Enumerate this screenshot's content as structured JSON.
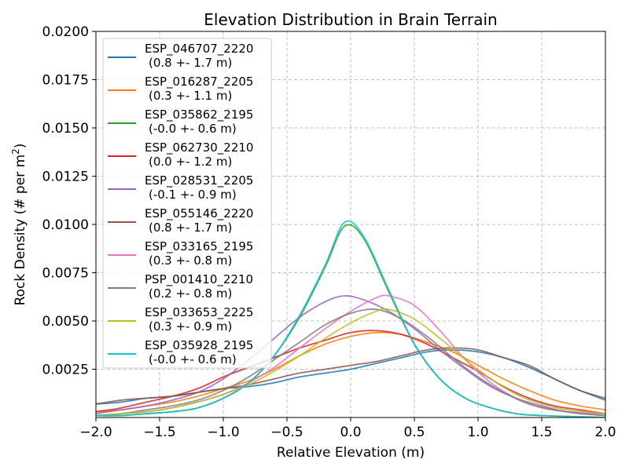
{
  "chart_data": {
    "type": "line",
    "title": "Elevation Distribution in Brain Terrain",
    "xlabel": "Relative Elevation (m)",
    "ylabel_main": "Rock Density (# per m",
    "ylabel_sup": "2",
    "ylabel_end": ")",
    "xlim": [
      -2.0,
      2.0
    ],
    "ylim": [
      0,
      0.02
    ],
    "grid": true,
    "legend_position": "upper-left",
    "x_ticks": [
      {
        "value": -2.0,
        "label": "−2.0"
      },
      {
        "value": -1.5,
        "label": "−1.5"
      },
      {
        "value": -1.0,
        "label": "−1.0"
      },
      {
        "value": -0.5,
        "label": "−0.5"
      },
      {
        "value": 0.0,
        "label": "0.0"
      },
      {
        "value": 0.5,
        "label": "0.5"
      },
      {
        "value": 1.0,
        "label": "1.0"
      },
      {
        "value": 1.5,
        "label": "1.5"
      },
      {
        "value": 2.0,
        "label": "2.0"
      }
    ],
    "y_ticks": [
      {
        "value": 0.0025,
        "label": "0.0025"
      },
      {
        "value": 0.005,
        "label": "0.0050"
      },
      {
        "value": 0.0075,
        "label": "0.0075"
      },
      {
        "value": 0.01,
        "label": "0.0100"
      },
      {
        "value": 0.0125,
        "label": "0.0125"
      },
      {
        "value": 0.015,
        "label": "0.0150"
      },
      {
        "value": 0.0175,
        "label": "0.0175"
      },
      {
        "value": 0.02,
        "label": "0.0200"
      }
    ],
    "series": [
      {
        "name": "ESP_046707_2220",
        "stats": "(0.8 +- 1.7 m)",
        "color": "#1f77b4",
        "points": [
          [
            -2.0,
            0.0007
          ],
          [
            -1.8,
            0.0008
          ],
          [
            -1.6,
            0.001
          ],
          [
            -1.4,
            0.0011
          ],
          [
            -1.2,
            0.0013
          ],
          [
            -1.0,
            0.0015
          ],
          [
            -0.8,
            0.0016
          ],
          [
            -0.6,
            0.0018
          ],
          [
            -0.4,
            0.0021
          ],
          [
            -0.2,
            0.0023
          ],
          [
            0.0,
            0.0025
          ],
          [
            0.2,
            0.0028
          ],
          [
            0.4,
            0.0031
          ],
          [
            0.6,
            0.0034
          ],
          [
            0.8,
            0.0035
          ],
          [
            1.0,
            0.0034
          ],
          [
            1.2,
            0.0031
          ],
          [
            1.4,
            0.0026
          ],
          [
            1.6,
            0.002
          ],
          [
            1.8,
            0.0014
          ],
          [
            2.0,
            0.0009
          ]
        ]
      },
      {
        "name": "ESP_016287_2205",
        "stats": "(0.3 +- 1.1 m)",
        "color": "#ff7f0e",
        "points": [
          [
            -2.0,
            0.0003
          ],
          [
            -1.8,
            0.0004
          ],
          [
            -1.6,
            0.0006
          ],
          [
            -1.4,
            0.0008
          ],
          [
            -1.2,
            0.0011
          ],
          [
            -1.0,
            0.0015
          ],
          [
            -0.8,
            0.0019
          ],
          [
            -0.6,
            0.0025
          ],
          [
            -0.4,
            0.0032
          ],
          [
            -0.2,
            0.0038
          ],
          [
            0.0,
            0.0042
          ],
          [
            0.2,
            0.0044
          ],
          [
            0.4,
            0.0043
          ],
          [
            0.6,
            0.0039
          ],
          [
            0.8,
            0.0034
          ],
          [
            1.0,
            0.0027
          ],
          [
            1.2,
            0.002
          ],
          [
            1.4,
            0.0014
          ],
          [
            1.6,
            0.0009
          ],
          [
            1.8,
            0.0006
          ],
          [
            2.0,
            0.0004
          ]
        ]
      },
      {
        "name": "ESP_035862_2195",
        "stats": "(-0.0 +- 0.6 m)",
        "color": "#2ca02c",
        "points": [
          [
            -2.0,
            0.0001
          ],
          [
            -1.8,
            0.0001
          ],
          [
            -1.6,
            0.0002
          ],
          [
            -1.4,
            0.0003
          ],
          [
            -1.2,
            0.0005
          ],
          [
            -1.0,
            0.001
          ],
          [
            -0.8,
            0.0018
          ],
          [
            -0.6,
            0.0032
          ],
          [
            -0.4,
            0.0052
          ],
          [
            -0.2,
            0.0078
          ],
          [
            -0.05,
            0.0099
          ],
          [
            0.1,
            0.0093
          ],
          [
            0.3,
            0.0065
          ],
          [
            0.5,
            0.0038
          ],
          [
            0.7,
            0.002
          ],
          [
            0.9,
            0.001
          ],
          [
            1.1,
            0.0005
          ],
          [
            1.3,
            0.0002
          ],
          [
            1.5,
            0.0001
          ],
          [
            2.0,
            0.0
          ]
        ]
      },
      {
        "name": "ESP_062730_2210",
        "stats": "(0.0 +- 1.2 m)",
        "color": "#d62728",
        "points": [
          [
            -2.0,
            0.0003
          ],
          [
            -1.8,
            0.0005
          ],
          [
            -1.6,
            0.0008
          ],
          [
            -1.4,
            0.0011
          ],
          [
            -1.2,
            0.0015
          ],
          [
            -1.0,
            0.0021
          ],
          [
            -0.8,
            0.0026
          ],
          [
            -0.6,
            0.0031
          ],
          [
            -0.4,
            0.0036
          ],
          [
            -0.2,
            0.004
          ],
          [
            0.0,
            0.0044
          ],
          [
            0.2,
            0.0045
          ],
          [
            0.4,
            0.0043
          ],
          [
            0.6,
            0.0038
          ],
          [
            0.8,
            0.0031
          ],
          [
            1.0,
            0.0024
          ],
          [
            1.2,
            0.0016
          ],
          [
            1.4,
            0.001
          ],
          [
            1.6,
            0.0006
          ],
          [
            1.8,
            0.0004
          ],
          [
            2.0,
            0.0002
          ]
        ]
      },
      {
        "name": "ESP_028531_2205",
        "stats": "(-0.1 +- 0.9 m)",
        "color": "#9467bd",
        "points": [
          [
            -2.0,
            0.0002
          ],
          [
            -1.8,
            0.0004
          ],
          [
            -1.6,
            0.0006
          ],
          [
            -1.4,
            0.0009
          ],
          [
            -1.2,
            0.0013
          ],
          [
            -1.0,
            0.002
          ],
          [
            -0.8,
            0.003
          ],
          [
            -0.6,
            0.0041
          ],
          [
            -0.4,
            0.0052
          ],
          [
            -0.2,
            0.006
          ],
          [
            -0.05,
            0.0063
          ],
          [
            0.1,
            0.0061
          ],
          [
            0.3,
            0.0055
          ],
          [
            0.5,
            0.0046
          ],
          [
            0.7,
            0.0035
          ],
          [
            0.9,
            0.0025
          ],
          [
            1.1,
            0.0016
          ],
          [
            1.3,
            0.001
          ],
          [
            1.5,
            0.0006
          ],
          [
            1.7,
            0.0003
          ],
          [
            2.0,
            0.0002
          ]
        ]
      },
      {
        "name": "ESP_055146_2220",
        "stats": "(0.8 +- 1.7 m)",
        "color": "#8c564b",
        "points": [
          [
            -2.0,
            0.0007
          ],
          [
            -1.8,
            0.0009
          ],
          [
            -1.6,
            0.001
          ],
          [
            -1.4,
            0.0011
          ],
          [
            -1.2,
            0.0013
          ],
          [
            -1.0,
            0.0015
          ],
          [
            -0.8,
            0.0017
          ],
          [
            -0.6,
            0.002
          ],
          [
            -0.4,
            0.0023
          ],
          [
            -0.2,
            0.0025
          ],
          [
            0.0,
            0.0027
          ],
          [
            0.2,
            0.0029
          ],
          [
            0.4,
            0.0032
          ],
          [
            0.6,
            0.0035
          ],
          [
            0.8,
            0.0036
          ],
          [
            1.0,
            0.0035
          ],
          [
            1.2,
            0.0031
          ],
          [
            1.4,
            0.0027
          ],
          [
            1.6,
            0.002
          ],
          [
            1.8,
            0.0014
          ],
          [
            2.0,
            0.001
          ]
        ]
      },
      {
        "name": "ESP_033165_2195",
        "stats": "(0.3 +- 0.8 m)",
        "color": "#e377c2",
        "points": [
          [
            -2.0,
            0.0001
          ],
          [
            -1.8,
            0.0002
          ],
          [
            -1.6,
            0.0003
          ],
          [
            -1.4,
            0.0005
          ],
          [
            -1.2,
            0.0008
          ],
          [
            -1.0,
            0.0012
          ],
          [
            -0.8,
            0.0018
          ],
          [
            -0.6,
            0.0026
          ],
          [
            -0.4,
            0.0036
          ],
          [
            -0.2,
            0.0046
          ],
          [
            0.0,
            0.0055
          ],
          [
            0.2,
            0.0062
          ],
          [
            0.3,
            0.0063
          ],
          [
            0.5,
            0.0058
          ],
          [
            0.7,
            0.0045
          ],
          [
            0.9,
            0.003
          ],
          [
            1.1,
            0.0018
          ],
          [
            1.3,
            0.001
          ],
          [
            1.5,
            0.0005
          ],
          [
            1.7,
            0.0003
          ],
          [
            2.0,
            0.0001
          ]
        ]
      },
      {
        "name": "PSP_001410_2210",
        "stats": "(0.2 +- 0.8 m)",
        "color": "#7f7f7f",
        "points": [
          [
            -2.0,
            0.0001
          ],
          [
            -1.8,
            0.0002
          ],
          [
            -1.6,
            0.0004
          ],
          [
            -1.4,
            0.0006
          ],
          [
            -1.2,
            0.0009
          ],
          [
            -1.0,
            0.0014
          ],
          [
            -0.8,
            0.0021
          ],
          [
            -0.6,
            0.003
          ],
          [
            -0.4,
            0.0039
          ],
          [
            -0.2,
            0.0048
          ],
          [
            0.0,
            0.0054
          ],
          [
            0.2,
            0.0056
          ],
          [
            0.4,
            0.0051
          ],
          [
            0.6,
            0.0042
          ],
          [
            0.8,
            0.0031
          ],
          [
            1.0,
            0.0021
          ],
          [
            1.2,
            0.0013
          ],
          [
            1.4,
            0.0007
          ],
          [
            1.6,
            0.0004
          ],
          [
            1.8,
            0.0002
          ],
          [
            2.0,
            0.0001
          ]
        ]
      },
      {
        "name": "ESP_033653_2225",
        "stats": "(0.3 +- 0.9 m)",
        "color": "#bcbd22",
        "points": [
          [
            -2.0,
            0.0001
          ],
          [
            -1.8,
            0.0002
          ],
          [
            -1.6,
            0.0003
          ],
          [
            -1.4,
            0.0005
          ],
          [
            -1.2,
            0.0008
          ],
          [
            -1.0,
            0.0012
          ],
          [
            -0.8,
            0.0017
          ],
          [
            -0.6,
            0.0024
          ],
          [
            -0.4,
            0.0032
          ],
          [
            -0.2,
            0.0041
          ],
          [
            0.0,
            0.0049
          ],
          [
            0.2,
            0.0055
          ],
          [
            0.3,
            0.0056
          ],
          [
            0.5,
            0.0051
          ],
          [
            0.7,
            0.0041
          ],
          [
            0.9,
            0.003
          ],
          [
            1.1,
            0.002
          ],
          [
            1.3,
            0.0012
          ],
          [
            1.5,
            0.0007
          ],
          [
            1.7,
            0.0004
          ],
          [
            2.0,
            0.0002
          ]
        ]
      },
      {
        "name": "ESP_035928_2195",
        "stats": "(-0.0 +- 0.6 m)",
        "color": "#17becf",
        "points": [
          [
            -2.0,
            0.0001
          ],
          [
            -1.8,
            0.0001
          ],
          [
            -1.6,
            0.0002
          ],
          [
            -1.4,
            0.0003
          ],
          [
            -1.2,
            0.0005
          ],
          [
            -1.0,
            0.001
          ],
          [
            -0.8,
            0.0018
          ],
          [
            -0.6,
            0.0032
          ],
          [
            -0.4,
            0.0053
          ],
          [
            -0.2,
            0.0079
          ],
          [
            -0.05,
            0.0101
          ],
          [
            0.1,
            0.0094
          ],
          [
            0.3,
            0.0066
          ],
          [
            0.5,
            0.0038
          ],
          [
            0.7,
            0.002
          ],
          [
            0.9,
            0.001
          ],
          [
            1.1,
            0.0005
          ],
          [
            1.3,
            0.0002
          ],
          [
            1.5,
            0.0001
          ],
          [
            2.0,
            0.0
          ]
        ]
      }
    ]
  }
}
